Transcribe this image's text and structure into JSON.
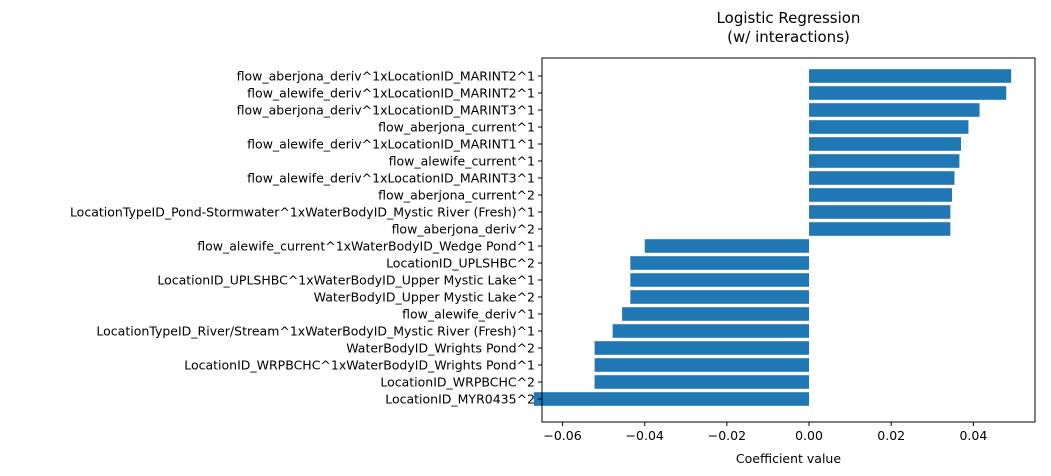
{
  "chart_data": {
    "type": "bar",
    "orientation": "horizontal",
    "title_lines": [
      "Logistic Regression",
      "(w/ interactions)"
    ],
    "xlabel": "Coefficient value",
    "ylabel": "",
    "xlim": [
      -0.065,
      0.055
    ],
    "xticks": [
      -0.06,
      -0.04,
      -0.02,
      0.0,
      0.02,
      0.04
    ],
    "xtick_labels": [
      "−0.06",
      "−0.04",
      "−0.02",
      "0.00",
      "0.02",
      "0.04"
    ],
    "grid": false,
    "bar_color": "#1f77b4",
    "categories": [
      "flow_aberjona_deriv^1xLocationID_MARINT2^1",
      "flow_alewife_deriv^1xLocationID_MARINT2^1",
      "flow_aberjona_deriv^1xLocationID_MARINT3^1",
      "flow_aberjona_current^1",
      "flow_alewife_deriv^1xLocationID_MARINT1^1",
      "flow_alewife_current^1",
      "flow_alewife_deriv^1xLocationID_MARINT3^1",
      "flow_aberjona_current^2",
      "LocationTypeID_Pond-Stormwater^1xWaterBodyID_Mystic River (Fresh)^1",
      "flow_aberjona_deriv^2",
      "flow_alewife_current^1xWaterBodyID_Wedge Pond^1",
      "LocationID_UPLSHBC^2",
      "LocationID_UPLSHBC^1xWaterBodyID_Upper Mystic Lake^1",
      "WaterBodyID_Upper Mystic Lake^2",
      "flow_alewife_deriv^1",
      "LocationTypeID_River/Stream^1xWaterBodyID_Mystic River (Fresh)^1",
      "WaterBodyID_Wrights Pond^2",
      "LocationID_WRPBCHC^1xWaterBodyID_Wrights Pond^1",
      "LocationID_WRPBCHC^2",
      "LocationID_MYR0435^2"
    ],
    "values": [
      0.0492,
      0.048,
      0.0415,
      0.0388,
      0.037,
      0.0366,
      0.0354,
      0.0348,
      0.0344,
      0.0344,
      -0.04,
      -0.0435,
      -0.0435,
      -0.0435,
      -0.0455,
      -0.0478,
      -0.0522,
      -0.0522,
      -0.0522,
      -0.067
    ]
  }
}
